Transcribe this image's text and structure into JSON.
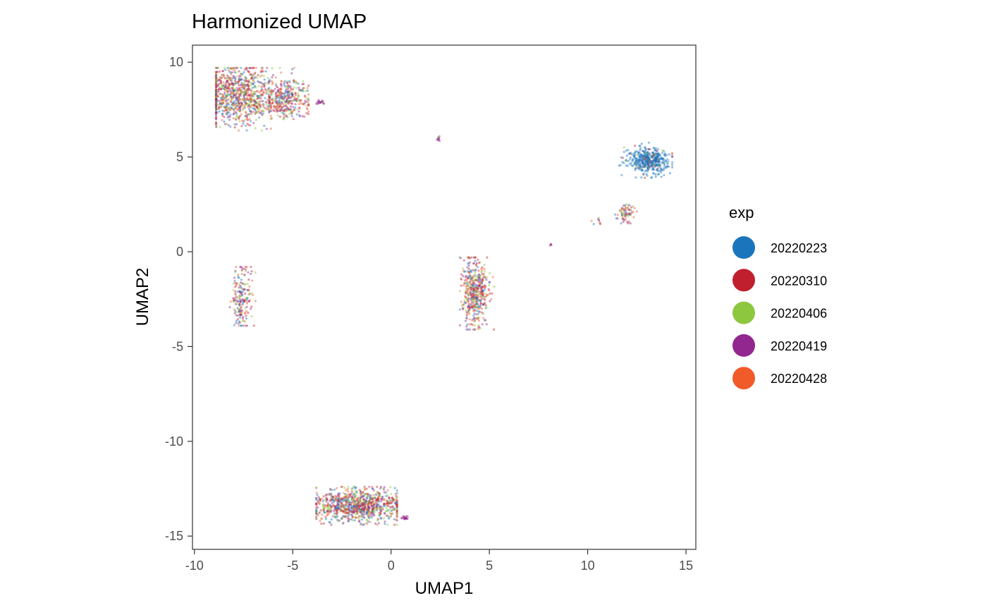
{
  "chart_data": {
    "type": "scatter",
    "title": "Harmonized UMAP",
    "xlabel": "UMAP1",
    "ylabel": "UMAP2",
    "xlim": [
      -10.1,
      15.5
    ],
    "ylim": [
      -15.7,
      10.9
    ],
    "x_ticks": [
      -10,
      -5,
      0,
      5,
      10,
      15
    ],
    "x_tick_labels": [
      "-10",
      "-5",
      "0",
      "5",
      "10",
      "15"
    ],
    "y_ticks": [
      10,
      5,
      0,
      -5,
      -10,
      -15
    ],
    "y_tick_labels": [
      "10",
      "5",
      "0",
      "-5",
      "-10",
      "-15"
    ],
    "grid": false,
    "legend": {
      "title": "exp",
      "position": "right",
      "entries": [
        {
          "label": "20220223",
          "color": "#1b75bc"
        },
        {
          "label": "20220310",
          "color": "#c01f2e"
        },
        {
          "label": "20220406",
          "color": "#8dc63f"
        },
        {
          "label": "20220419",
          "color": "#92278f"
        },
        {
          "label": "20220428",
          "color": "#f15a29"
        }
      ]
    },
    "clusters": [
      {
        "center": [
          -7.8,
          8.2
        ],
        "spread": [
          1.0,
          0.8
        ],
        "y_range": [
          6.4,
          9.7
        ],
        "x_range": [
          -8.9,
          -3.4
        ],
        "n": 900,
        "dominant": null
      },
      {
        "center": [
          -5.3,
          8.1
        ],
        "spread": [
          0.6,
          0.5
        ],
        "y_range": [
          7.0,
          9.0
        ],
        "x_range": [
          -6.2,
          -4.2
        ],
        "n": 300,
        "dominant": null
      },
      {
        "center": [
          -3.6,
          7.9
        ],
        "spread": [
          0.12,
          0.06
        ],
        "y_range": [
          7.8,
          8.0
        ],
        "x_range": [
          -3.8,
          -3.3
        ],
        "n": 20,
        "dominant": 3
      },
      {
        "center": [
          2.4,
          5.95
        ],
        "spread": [
          0.05,
          0.06
        ],
        "y_range": [
          5.8,
          6.1
        ],
        "x_range": [
          2.25,
          2.5
        ],
        "n": 10,
        "dominant": 3
      },
      {
        "center": [
          13.1,
          4.8
        ],
        "spread": [
          0.55,
          0.35
        ],
        "y_range": [
          3.9,
          5.8
        ],
        "x_range": [
          11.6,
          14.3
        ],
        "n": 450,
        "dominant": 0
      },
      {
        "center": [
          11.9,
          2.0
        ],
        "spread": [
          0.25,
          0.25
        ],
        "y_range": [
          1.5,
          2.7
        ],
        "x_range": [
          11.4,
          12.6
        ],
        "n": 70,
        "dominant": null
      },
      {
        "center": [
          10.5,
          1.6
        ],
        "spread": [
          0.2,
          0.1
        ],
        "y_range": [
          1.4,
          1.8
        ],
        "x_range": [
          10.2,
          10.8
        ],
        "n": 8,
        "dominant": null
      },
      {
        "center": [
          8.1,
          0.35
        ],
        "spread": [
          0.03,
          0.03
        ],
        "y_range": [
          0.3,
          0.4
        ],
        "x_range": [
          8.05,
          8.15
        ],
        "n": 4,
        "dominant": 3
      },
      {
        "center": [
          4.3,
          -2.2
        ],
        "spread": [
          0.35,
          0.9
        ],
        "y_range": [
          -4.1,
          -0.3
        ],
        "x_range": [
          3.5,
          5.3
        ],
        "n": 450,
        "dominant": null
      },
      {
        "center": [
          -7.6,
          -2.5
        ],
        "spread": [
          0.25,
          0.8
        ],
        "y_range": [
          -3.9,
          -0.8
        ],
        "x_range": [
          -8.2,
          -6.9
        ],
        "n": 180,
        "dominant": null
      },
      {
        "center": [
          -1.7,
          -13.4
        ],
        "spread": [
          1.1,
          0.45
        ],
        "y_range": [
          -14.4,
          -12.4
        ],
        "x_range": [
          -3.8,
          0.3
        ],
        "n": 900,
        "dominant": null
      },
      {
        "center": [
          0.7,
          -14.05
        ],
        "spread": [
          0.1,
          0.05
        ],
        "y_range": [
          -14.2,
          -13.9
        ],
        "x_range": [
          0.4,
          0.9
        ],
        "n": 20,
        "dominant": 3
      }
    ]
  }
}
